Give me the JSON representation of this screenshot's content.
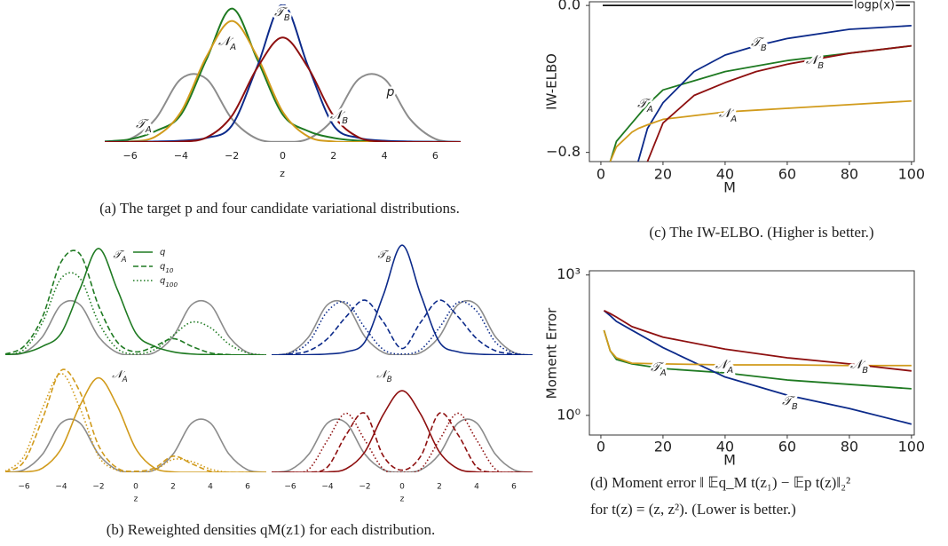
{
  "chart_data": [
    {
      "type": "line",
      "smooth": true,
      "x": [
        -7,
        -6,
        -5,
        -4,
        -3,
        -2,
        -1,
        0,
        1,
        2,
        3,
        4,
        5,
        6,
        7
      ],
      "xlim": [
        -7,
        7
      ],
      "ylim": [
        0,
        1
      ],
      "xticks": [
        {
          "value": -6,
          "label": "−6"
        },
        {
          "value": -4,
          "label": "−4"
        },
        {
          "value": -2,
          "label": "−2"
        },
        0,
        2,
        4,
        6
      ],
      "xlabel": "z",
      "caption": "(a) The target p and four candidate variational distributions.",
      "series": [
        {
          "name": "p",
          "color": "#8c8c8c",
          "values": [
            0.001,
            0.023,
            0.169,
            0.459,
            0.459,
            0.169,
            0.023,
            0.002,
            0.023,
            0.169,
            0.459,
            0.459,
            0.169,
            0.023,
            0.001
          ]
        },
        {
          "name": "𝒯A",
          "color": "#1f7a22",
          "values": [
            0.005,
            0.02,
            0.08,
            0.2,
            0.6,
            0.97,
            0.6,
            0.2,
            0.08,
            0.03,
            0.01,
            0.005,
            0.002,
            0.001,
            0
          ]
        },
        {
          "name": "𝒩A",
          "color": "#d19b1c",
          "values": [
            0,
            0.004,
            0.04,
            0.22,
            0.62,
            0.88,
            0.62,
            0.22,
            0.04,
            0.004,
            0,
            0,
            0,
            0,
            0
          ]
        },
        {
          "name": "𝒯B",
          "color": "#0c2a8a",
          "values": [
            0.001,
            0.002,
            0.004,
            0.01,
            0.03,
            0.12,
            0.55,
            1,
            0.55,
            0.12,
            0.03,
            0.01,
            0.004,
            0.002,
            0.001
          ]
        },
        {
          "name": "𝒩B",
          "color": "#8e1010",
          "values": [
            0,
            0,
            0,
            0.003,
            0.033,
            0.19,
            0.54,
            0.76,
            0.54,
            0.19,
            0.033,
            0.003,
            0,
            0,
            0
          ]
        }
      ]
    },
    {
      "type": "line",
      "smooth": true,
      "label": "𝒯A",
      "legend": true,
      "x": [
        -7,
        -6,
        -5,
        -4,
        -3,
        -2,
        -1,
        0,
        1,
        2,
        3,
        4,
        5,
        6,
        7
      ],
      "xlim": [
        -7,
        7
      ],
      "ylim": [
        0,
        1.05
      ],
      "caption": "(b) Reweighted densities qM(z1) for each distribution.",
      "series": [
        {
          "color": "#8c8c8c",
          "dash": "solid",
          "values": [
            0.001,
            0.023,
            0.169,
            0.459,
            0.459,
            0.169,
            0.023,
            0.002,
            0.023,
            0.169,
            0.459,
            0.459,
            0.169,
            0.023,
            0.001
          ]
        },
        {
          "name": "q",
          "color": "#1f7a22",
          "dash": "solid",
          "values": [
            0.005,
            0.02,
            0.08,
            0.2,
            0.6,
            0.97,
            0.6,
            0.2,
            0.08,
            0.03,
            0.01,
            0.005,
            0.002,
            0.001,
            0
          ]
        },
        {
          "name": "q10",
          "color": "#1f7a22",
          "dash": "dashed",
          "values": [
            0.01,
            0.08,
            0.35,
            0.85,
            0.92,
            0.45,
            0.12,
            0.03,
            0.08,
            0.15,
            0.08,
            0.02,
            0.005,
            0,
            0
          ]
        },
        {
          "name": "q100",
          "color": "#1f7a22",
          "dash": "dotted",
          "values": [
            0.003,
            0.05,
            0.3,
            0.7,
            0.7,
            0.3,
            0.06,
            0.01,
            0.05,
            0.18,
            0.3,
            0.25,
            0.1,
            0.02,
            0
          ]
        }
      ]
    },
    {
      "type": "line",
      "smooth": true,
      "label": "𝒯B",
      "x": [
        -7,
        -6,
        -5,
        -4,
        -3,
        -2,
        -1,
        0,
        1,
        2,
        3,
        4,
        5,
        6,
        7
      ],
      "xlim": [
        -7,
        7
      ],
      "ylim": [
        0,
        1.05
      ],
      "series": [
        {
          "color": "#8c8c8c",
          "dash": "solid",
          "values": [
            0.001,
            0.023,
            0.169,
            0.459,
            0.459,
            0.169,
            0.023,
            0.002,
            0.023,
            0.169,
            0.459,
            0.459,
            0.169,
            0.023,
            0.001
          ]
        },
        {
          "color": "#0c2a8a",
          "dash": "solid",
          "values": [
            0.001,
            0.002,
            0.004,
            0.01,
            0.03,
            0.12,
            0.55,
            1,
            0.55,
            0.12,
            0.03,
            0.01,
            0.004,
            0.002,
            0.001
          ]
        },
        {
          "color": "#0c2a8a",
          "dash": "dashed",
          "values": [
            0,
            0.01,
            0.04,
            0.15,
            0.35,
            0.5,
            0.3,
            0.06,
            0.3,
            0.5,
            0.35,
            0.15,
            0.04,
            0.01,
            0
          ]
        },
        {
          "color": "#0c2a8a",
          "dash": "dotted",
          "values": [
            0,
            0.02,
            0.12,
            0.4,
            0.48,
            0.25,
            0.05,
            0.01,
            0.05,
            0.25,
            0.48,
            0.4,
            0.12,
            0.02,
            0
          ]
        }
      ]
    },
    {
      "type": "line",
      "smooth": true,
      "label": "𝒩A",
      "x": [
        -7,
        -6,
        -5,
        -4,
        -3,
        -2,
        -1,
        0,
        1,
        2,
        3,
        4,
        5,
        6,
        7
      ],
      "xlim": [
        -7,
        7
      ],
      "ylim": [
        0,
        1.05
      ],
      "xticks": [
        {
          "value": -6,
          "label": "−6"
        },
        {
          "value": -4,
          "label": "−4"
        },
        {
          "value": -2,
          "label": "−2"
        },
        0,
        2,
        4,
        6
      ],
      "xlabel": "z",
      "series": [
        {
          "color": "#8c8c8c",
          "dash": "solid",
          "values": [
            0.001,
            0.023,
            0.169,
            0.459,
            0.459,
            0.169,
            0.023,
            0.002,
            0.023,
            0.169,
            0.459,
            0.459,
            0.169,
            0.023,
            0.001
          ]
        },
        {
          "color": "#d19b1c",
          "dash": "solid",
          "values": [
            0,
            0.004,
            0.04,
            0.22,
            0.62,
            0.88,
            0.62,
            0.22,
            0.04,
            0.004,
            0,
            0,
            0,
            0,
            0
          ]
        },
        {
          "color": "#d19b1c",
          "dash": "dashed",
          "values": [
            0.005,
            0.1,
            0.5,
            0.95,
            0.75,
            0.25,
            0.04,
            0.01,
            0.04,
            0.15,
            0.08,
            0.01,
            0,
            0,
            0
          ]
        },
        {
          "color": "#d19b1c",
          "dash": "dotted",
          "values": [
            0.01,
            0.15,
            0.6,
            0.92,
            0.6,
            0.15,
            0.02,
            0,
            0.02,
            0.12,
            0.1,
            0.03,
            0,
            0,
            0
          ]
        }
      ]
    },
    {
      "type": "line",
      "smooth": true,
      "label": "𝒩B",
      "x": [
        -7,
        -6,
        -5,
        -4,
        -3,
        -2,
        -1,
        0,
        1,
        2,
        3,
        4,
        5,
        6,
        7
      ],
      "xlim": [
        -7,
        7
      ],
      "ylim": [
        0,
        1.05
      ],
      "xticks": [
        {
          "value": -6,
          "label": "−6"
        },
        {
          "value": -4,
          "label": "−4"
        },
        {
          "value": -2,
          "label": "−2"
        },
        0,
        2,
        4,
        6
      ],
      "xlabel": "z",
      "series": [
        {
          "color": "#8c8c8c",
          "dash": "solid",
          "values": [
            0.001,
            0.023,
            0.169,
            0.459,
            0.459,
            0.169,
            0.023,
            0.002,
            0.023,
            0.169,
            0.459,
            0.459,
            0.169,
            0.023,
            0.001
          ]
        },
        {
          "color": "#8e1010",
          "dash": "solid",
          "values": [
            0,
            0,
            0,
            0.003,
            0.033,
            0.19,
            0.54,
            0.76,
            0.54,
            0.19,
            0.033,
            0.003,
            0,
            0,
            0
          ]
        },
        {
          "color": "#8e1010",
          "dash": "dashed",
          "values": [
            0,
            0,
            0,
            0.05,
            0.35,
            0.55,
            0.15,
            0.02,
            0.15,
            0.55,
            0.35,
            0.05,
            0,
            0,
            0
          ]
        },
        {
          "color": "#8e1010",
          "dash": "dotted",
          "values": [
            0,
            0,
            0.03,
            0.3,
            0.55,
            0.3,
            0.03,
            0,
            0.03,
            0.3,
            0.55,
            0.3,
            0.03,
            0,
            0
          ]
        }
      ]
    },
    {
      "type": "line",
      "frame": true,
      "x": [
        3,
        5,
        10,
        12,
        15,
        20,
        30,
        40,
        50,
        60,
        80,
        100
      ],
      "xlim": [
        -3.7,
        100.9
      ],
      "ylim": [
        -0.85,
        0.02
      ],
      "xticks": [
        0,
        20,
        40,
        60,
        80,
        100
      ],
      "yticks": [
        {
          "value": 0,
          "label": "0.0"
        },
        {
          "value": -0.8,
          "label": "−0.8"
        }
      ],
      "xlabel": "M",
      "ylabel": "IW-ELBO",
      "hline": {
        "value": 0,
        "label": "logp(x)"
      },
      "caption": "(c) The IW-ELBO. (Higher is better.)",
      "series": [
        {
          "name": "𝒯A",
          "color": "#1f7a22",
          "values": [
            -0.85,
            -0.74,
            -0.64,
            -0.6,
            -0.54,
            -0.46,
            -0.41,
            -0.36,
            -0.33,
            -0.3,
            -0.26,
            -0.22
          ]
        },
        {
          "name": "𝒯B",
          "color": "#0c2a8a",
          "values": [
            null,
            null,
            null,
            -0.85,
            -0.67,
            -0.53,
            -0.36,
            -0.27,
            -0.22,
            -0.18,
            -0.13,
            -0.11
          ]
        },
        {
          "name": "𝒩A",
          "color": "#d19b1c",
          "values": [
            -0.85,
            -0.77,
            -0.69,
            -0.67,
            -0.65,
            -0.62,
            -0.6,
            -0.58,
            -0.57,
            -0.56,
            -0.54,
            -0.52
          ]
        },
        {
          "name": "𝒩B",
          "color": "#8e1010",
          "values": [
            null,
            null,
            null,
            null,
            -0.85,
            -0.64,
            -0.49,
            -0.42,
            -0.36,
            -0.32,
            -0.26,
            -0.22
          ]
        }
      ]
    },
    {
      "type": "line",
      "frame": true,
      "ylog": true,
      "x": [
        1,
        3,
        5,
        10,
        20,
        40,
        60,
        80,
        100
      ],
      "xlim": [
        -3.7,
        100.9
      ],
      "ylim": [
        0.38,
        1230
      ],
      "xticks": [
        0,
        20,
        40,
        60,
        80,
        100
      ],
      "yticks": [
        {
          "value": 1,
          "label": "10⁰"
        },
        {
          "value": 1000,
          "label": "10³"
        }
      ],
      "xlabel": "M",
      "ylabel": "Moment Error",
      "caption": [
        "(d) Moment error ‖ 𝔼q_M t(z₁) − 𝔼p t(z)‖₂²",
        "for t(z) = (z, z²). (Lower is better.)"
      ],
      "series": [
        {
          "name": "𝒯A",
          "color": "#1f7a22",
          "values": [
            66,
            24,
            15.7,
            12.6,
            10,
            8.1,
            5.7,
            4.6,
            3.7
          ]
        },
        {
          "name": "𝒯B",
          "color": "#0c2a8a",
          "values": [
            174,
            135,
            102,
            66,
            28,
            6.6,
            2.7,
            1.4,
            0.65
          ]
        },
        {
          "name": "𝒩A",
          "color": "#d19b1c",
          "values": [
            66,
            24,
            17,
            13,
            12.6,
            12,
            12,
            11.6,
            11.6
          ]
        },
        {
          "name": "𝒩B",
          "color": "#8e1010",
          "values": [
            174,
            150,
            126,
            79,
            47,
            26,
            17,
            12.6,
            8.9
          ]
        }
      ]
    }
  ]
}
